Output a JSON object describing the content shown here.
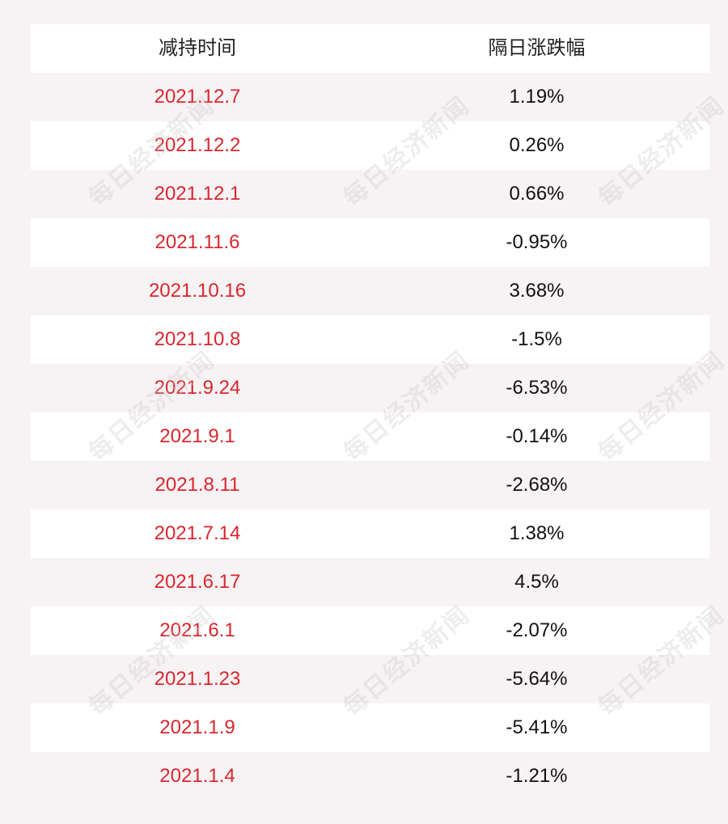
{
  "table": {
    "headers": [
      "减持时间",
      "隔日涨跌幅"
    ],
    "rows": [
      {
        "date": "2021.12.7",
        "change": "1.19%"
      },
      {
        "date": "2021.12.2",
        "change": "0.26%"
      },
      {
        "date": "2021.12.1",
        "change": "0.66%"
      },
      {
        "date": "2021.11.6",
        "change": "-0.95%"
      },
      {
        "date": "2021.10.16",
        "change": "3.68%"
      },
      {
        "date": "2021.10.8",
        "change": "-1.5%"
      },
      {
        "date": "2021.9.24",
        "change": "-6.53%"
      },
      {
        "date": "2021.9.1",
        "change": "-0.14%"
      },
      {
        "date": "2021.8.11",
        "change": "-2.68%"
      },
      {
        "date": "2021.7.14",
        "change": "1.38%"
      },
      {
        "date": "2021.6.17",
        "change": "4.5%"
      },
      {
        "date": "2021.6.1",
        "change": "-2.07%"
      },
      {
        "date": "2021.1.23",
        "change": "-5.64%"
      },
      {
        "date": "2021.1.9",
        "change": "-5.41%"
      },
      {
        "date": "2021.1.4",
        "change": "-1.21%"
      }
    ]
  },
  "watermark": {
    "text": "每日经济新闻"
  },
  "colors": {
    "date_text": "#d9262e",
    "value_text": "#111111",
    "row_white": "#ffffff",
    "row_tint": "#f7f3f4"
  }
}
